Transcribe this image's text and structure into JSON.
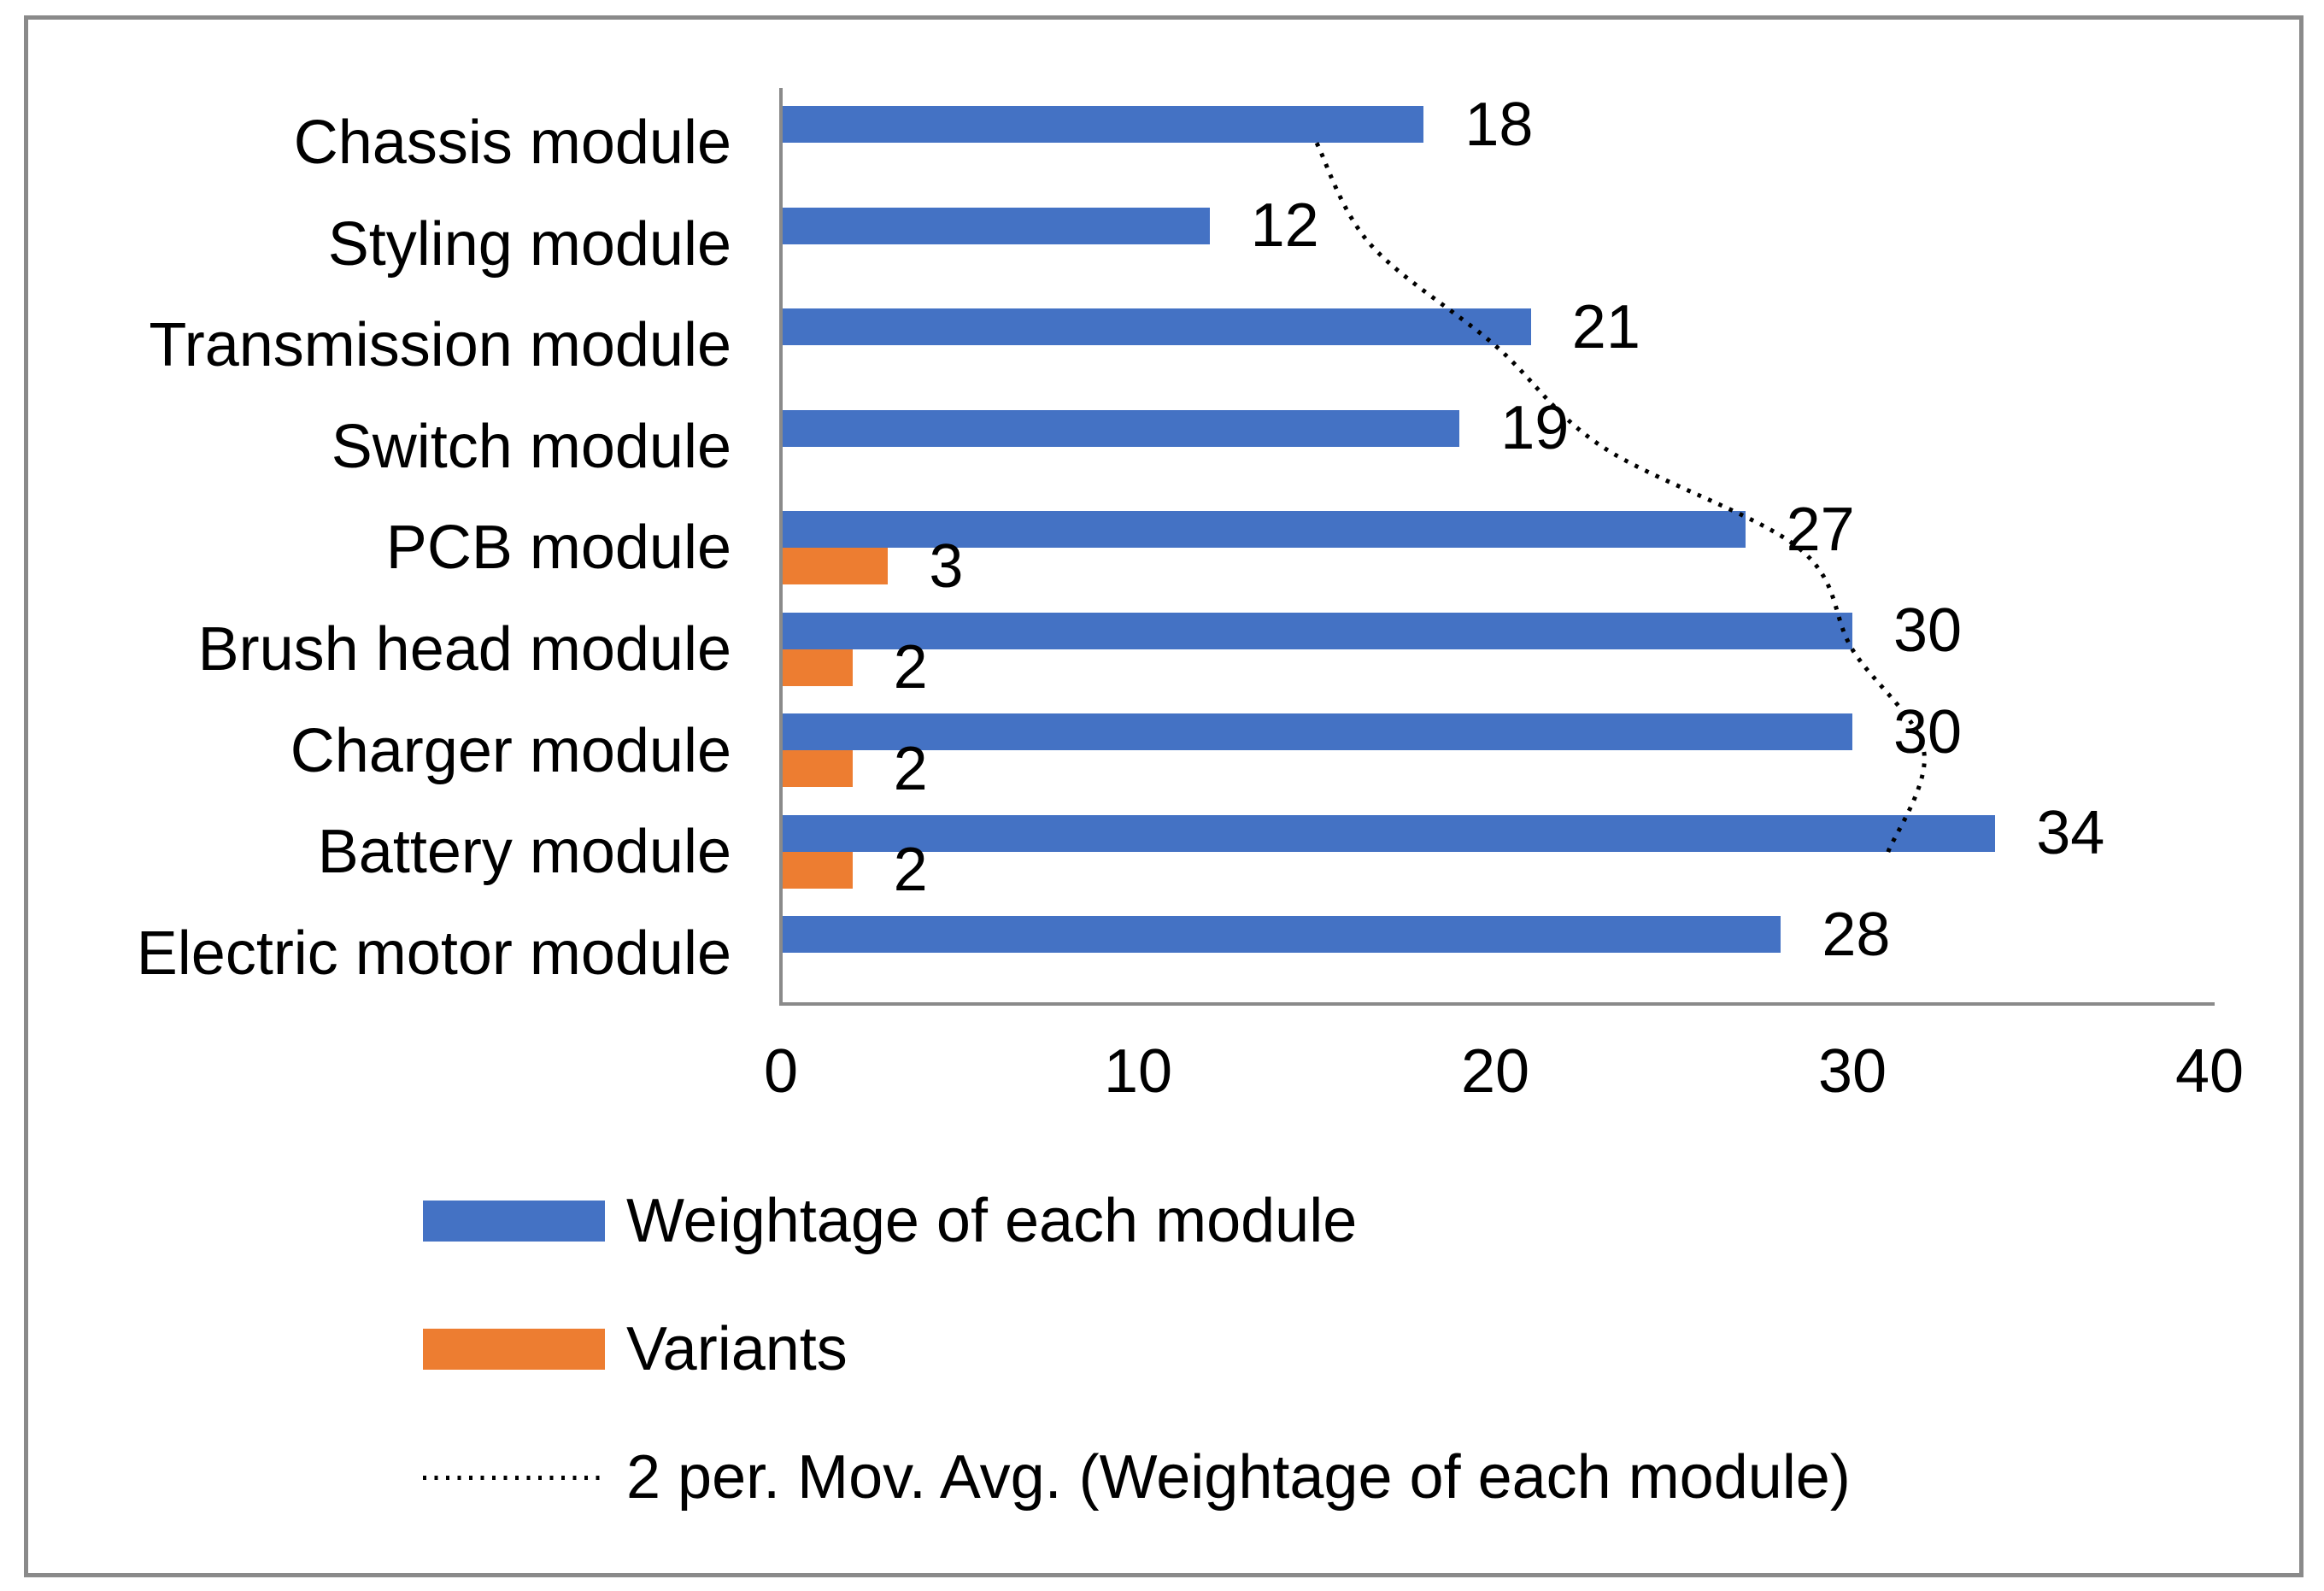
{
  "chart_data": {
    "type": "bar",
    "orientation": "horizontal-grouped",
    "title": "",
    "xlabel": "",
    "ylabel": "",
    "categories": [
      "Chassis module",
      "Styling module",
      "Transmission module",
      "Switch module",
      "PCB module",
      "Brush head module",
      "Charger module",
      "Battery module",
      "Electric motor module"
    ],
    "series": [
      {
        "name": "Weightage of each module",
        "color": "#4472C4",
        "values": [
          18,
          12,
          21,
          19,
          27,
          30,
          30,
          34,
          28
        ]
      },
      {
        "name": "Variants",
        "color": "#ED7D31",
        "values": [
          null,
          null,
          null,
          null,
          3,
          2,
          2,
          2,
          null
        ]
      }
    ],
    "trendline": {
      "name": "2 per. Mov. Avg. (Weightage of each module)",
      "color": "#000000",
      "style": "dotted",
      "period": 2,
      "values": [
        15,
        16.5,
        20,
        23,
        28.5,
        30,
        32,
        31,
        null
      ]
    },
    "x_ticks": [
      "0",
      "10",
      "20",
      "30",
      "40"
    ],
    "xlim": [
      0,
      40
    ],
    "grid": false,
    "data_labels": true,
    "legend_position": "bottom-left",
    "axis_color": "#8a8a8a",
    "border_color": "#8a8a8a",
    "label_color": "#000000"
  }
}
